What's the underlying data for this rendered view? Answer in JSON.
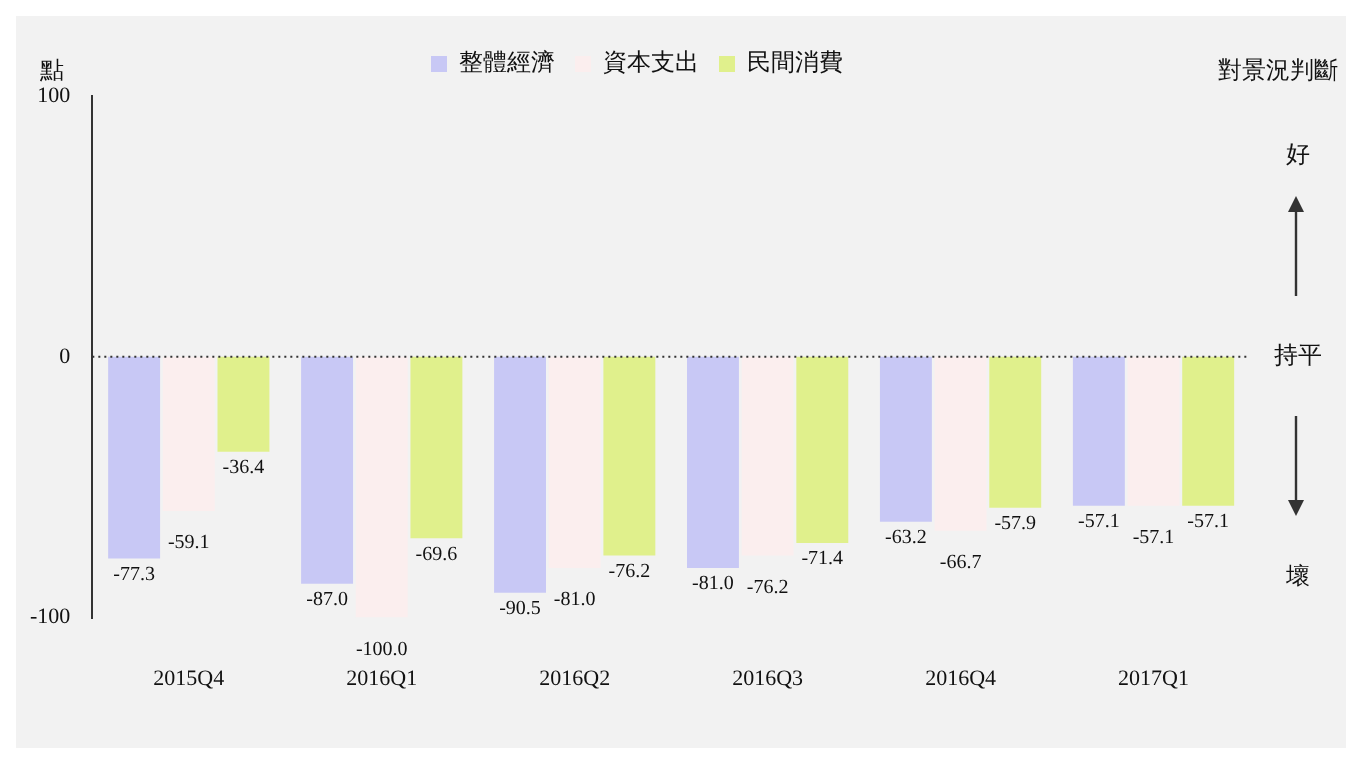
{
  "chart_data": {
    "type": "bar",
    "ylabel": "點",
    "categories": [
      "2015Q4",
      "2016Q1",
      "2016Q2",
      "2016Q3",
      "2016Q4",
      "2017Q1"
    ],
    "series": [
      {
        "name": "整體經濟",
        "color": "#c8c8f5",
        "values": [
          -77.3,
          -87.0,
          -90.5,
          -81.0,
          -63.2,
          -57.1
        ],
        "value_labels": [
          "-77.3",
          "-87.0",
          "-90.5",
          "-81.0",
          "-63.2",
          "-57.1"
        ]
      },
      {
        "name": "資本支出",
        "color": "#fbeeee",
        "values": [
          -59.1,
          -100.0,
          -81.0,
          -76.2,
          -66.7,
          -57.1
        ],
        "value_labels": [
          "-59.1",
          "-100.0",
          "-81.0",
          "-76.2",
          "-66.7",
          "-57.1"
        ]
      },
      {
        "name": "民間消費",
        "color": "#e0f08c",
        "values": [
          -36.4,
          -69.6,
          -76.2,
          -71.4,
          -57.9,
          -57.1
        ],
        "value_labels": [
          "-36.4",
          "-69.6",
          "-76.2",
          "-71.4",
          "-57.9",
          "-57.1"
        ]
      }
    ],
    "ylim": [
      -100,
      100
    ],
    "yticks": [
      -100,
      0,
      100
    ],
    "grid": false,
    "legend": "top",
    "ref_lines": [
      {
        "axis": "y",
        "value": 0,
        "line_style": "dotted",
        "color": "#333333"
      }
    ],
    "annotations": [
      "對景況判斷",
      "好",
      "持平",
      "壞"
    ]
  }
}
